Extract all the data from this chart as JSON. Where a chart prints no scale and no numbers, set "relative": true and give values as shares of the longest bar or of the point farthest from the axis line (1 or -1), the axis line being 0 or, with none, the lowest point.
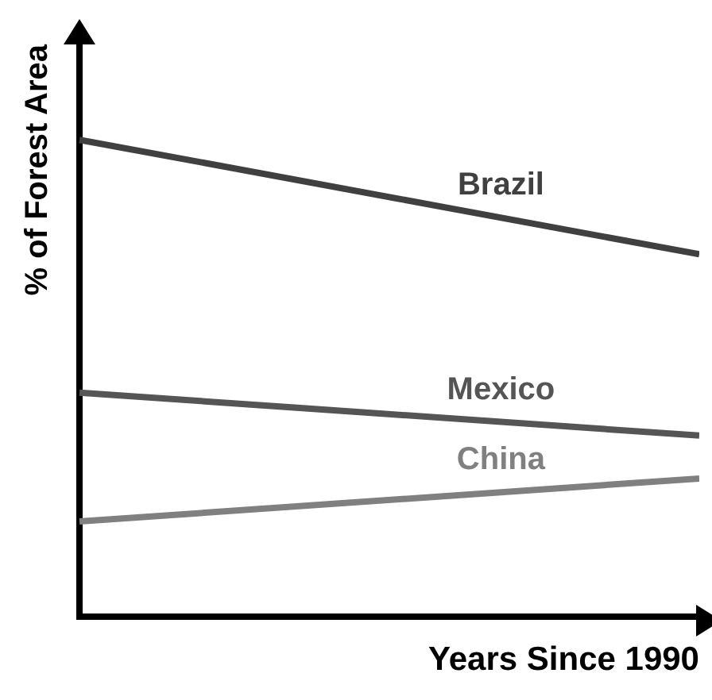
{
  "chart_data": {
    "type": "line",
    "relative": true,
    "xlabel": "Years Since 1990",
    "ylabel": "% of Forest Area",
    "categories": [
      null,
      null
    ],
    "series": [
      {
        "name": "Brazil",
        "color": "#404040",
        "values": [
          1,
          0.76
        ]
      },
      {
        "name": "Mexico",
        "color": "#555555",
        "values": [
          0.47,
          0.38
        ]
      },
      {
        "name": "China",
        "color": "#808080",
        "values": [
          0.2,
          0.29
        ]
      }
    ],
    "grid": false,
    "legend": false,
    "marker": "none",
    "line_style": "solid"
  }
}
